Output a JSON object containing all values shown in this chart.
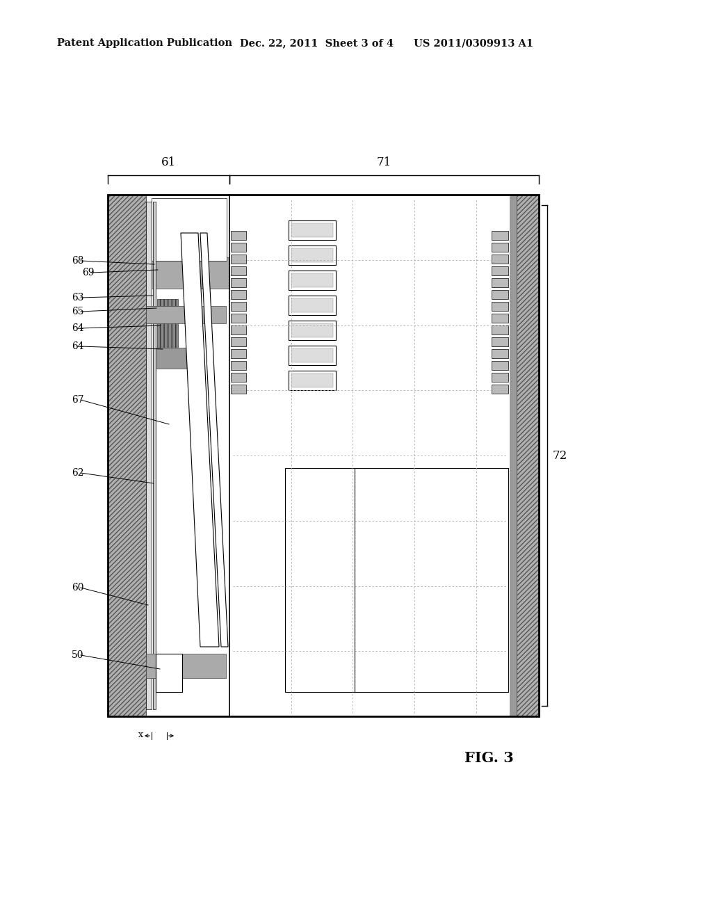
{
  "bg_color": "#ffffff",
  "header_text1": "Patent Application Publication",
  "header_text2": "Dec. 22, 2011  Sheet 3 of 4",
  "header_text3": "US 2011/0309913 A1",
  "fig_label": "FIG. 3",
  "label_61": "61",
  "label_71": "71",
  "label_72": "72",
  "label_62": "62",
  "label_67": "67",
  "label_64a": "64",
  "label_64b": "64",
  "label_65": "65",
  "label_63": "63",
  "label_68": "68",
  "label_69": "69",
  "label_60": "60",
  "label_50": "50",
  "label_x": "x"
}
